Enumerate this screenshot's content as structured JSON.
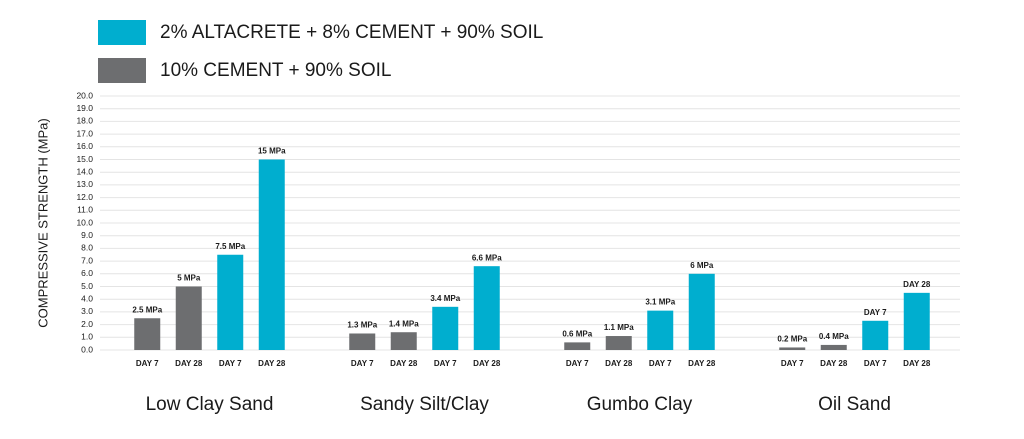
{
  "chart_data": {
    "type": "grouped_bar",
    "ylabel": "COMPRESSIVE STRENGTH (MPa)",
    "categories": [
      "Low Clay Sand",
      "Sandy Silt/Clay",
      "Gumbo Clay",
      "Oil Sand"
    ],
    "bar_labels": [
      "DAY 7",
      "DAY 28"
    ],
    "series": [
      {
        "name": "2% ALTACRETE + 8% CEMENT + 90% SOIL",
        "color": "#00aecf",
        "values": [
          [
            7.5,
            15
          ],
          [
            3.4,
            6.6
          ],
          [
            3.1,
            6
          ],
          [
            2.3,
            4.5
          ]
        ],
        "value_labels": [
          [
            "7.5 MPa",
            "15 MPa"
          ],
          [
            "3.4 MPa",
            "6.6 MPa"
          ],
          [
            "3.1 MPa",
            "6 MPa"
          ],
          [
            "DAY 7",
            "DAY 28"
          ]
        ]
      },
      {
        "name": "10% CEMENT + 90% SOIL",
        "color": "#6d6e70",
        "values": [
          [
            2.5,
            5
          ],
          [
            1.3,
            1.4
          ],
          [
            0.6,
            1.1
          ],
          [
            0.2,
            0.4
          ]
        ],
        "value_labels": [
          [
            "2.5 MPa",
            "5 MPa"
          ],
          [
            "1.3 MPa",
            "1.4 MPa"
          ],
          [
            "0.6 MPa",
            "1.1 MPa"
          ],
          [
            "0.2 MPa",
            "0.4 MPa"
          ]
        ]
      }
    ],
    "ylim": [
      0,
      20
    ],
    "yticks": [
      {
        "value": 0,
        "label": "0.0"
      },
      {
        "value": 1,
        "label": "1.0"
      },
      {
        "value": 2,
        "label": "2.0"
      },
      {
        "value": 3,
        "label": "3.0"
      },
      {
        "value": 4,
        "label": "4.0"
      },
      {
        "value": 5,
        "label": "5.0"
      },
      {
        "value": 6,
        "label": "6.0"
      },
      {
        "value": 7,
        "label": "7.0"
      },
      {
        "value": 8,
        "label": "8.0"
      },
      {
        "value": 9,
        "label": "9.0"
      },
      {
        "value": 10,
        "label": "10.0"
      },
      {
        "value": 11,
        "label": "11.0"
      },
      {
        "value": 12,
        "label": "12.0"
      },
      {
        "value": 13,
        "label": "13.0"
      },
      {
        "value": 14,
        "label": "14.0"
      },
      {
        "value": 15,
        "label": "15.0"
      },
      {
        "value": 16,
        "label": "16.0"
      },
      {
        "value": 17,
        "label": "17.0"
      },
      {
        "value": 18,
        "label": "18.0"
      },
      {
        "value": 19,
        "label": "19.0"
      },
      {
        "value": 20,
        "label": "20.0"
      }
    ],
    "grid": true
  }
}
